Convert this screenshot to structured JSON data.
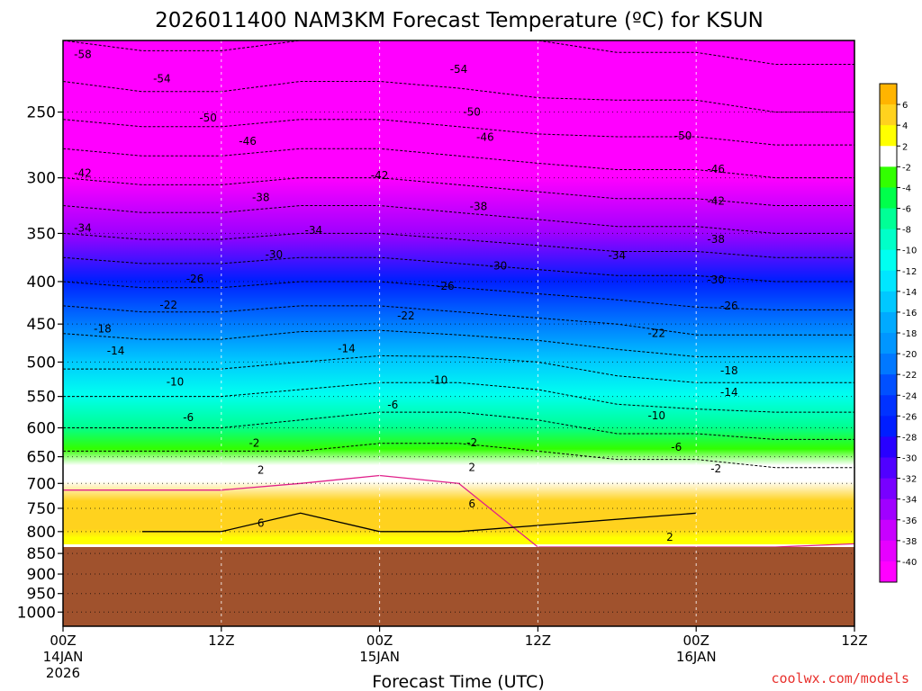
{
  "chart_data": {
    "type": "heatmap",
    "title": "2026011400 NAM3KM Forecast Temperature (ºC) for KSUN",
    "xlabel": "Forecast Time (UTC)",
    "ylabel": "",
    "y_axis": {
      "kind": "log-pressure",
      "units": "hPa",
      "range": [
        1040,
        205
      ],
      "ticks": [
        250,
        300,
        350,
        400,
        450,
        500,
        550,
        600,
        650,
        700,
        750,
        800,
        850,
        900,
        950,
        1000
      ]
    },
    "x_axis": {
      "units": "hours",
      "range": [
        0,
        60
      ],
      "ticks": [
        {
          "hour": 0,
          "label": "00Z",
          "date": "14JAN",
          "year": "2026"
        },
        {
          "hour": 12,
          "label": "12Z",
          "date": "",
          "year": ""
        },
        {
          "hour": 24,
          "label": "00Z",
          "date": "15JAN",
          "year": ""
        },
        {
          "hour": 36,
          "label": "12Z",
          "date": "",
          "year": ""
        },
        {
          "hour": 48,
          "label": "00Z",
          "date": "16JAN",
          "year": ""
        },
        {
          "hour": 60,
          "label": "12Z",
          "date": "",
          "year": ""
        }
      ]
    },
    "terrain_top_hPa": 835,
    "terrain_color": "#a0522d",
    "colorbar": {
      "labels": [
        "6",
        "4",
        "2",
        "-2",
        "-4",
        "-6",
        "-8",
        "-10",
        "-12",
        "-14",
        "-16",
        "-18",
        "-20",
        "-22",
        "-24",
        "-26",
        "-28",
        "-30",
        "-32",
        "-34",
        "-36",
        "-38",
        "-40"
      ],
      "colors": [
        "#ffb400",
        "#ffd21e",
        "#ffff00",
        "#ffffff",
        "#32ff00",
        "#00ff4b",
        "#00ff96",
        "#00ffc8",
        "#00fff0",
        "#00e6ff",
        "#00c8ff",
        "#00aaff",
        "#0096ff",
        "#0078ff",
        "#0050ff",
        "#0032ff",
        "#001eff",
        "#2800ff",
        "#5000ff",
        "#7800ff",
        "#a000ff",
        "#c800ff",
        "#e600ff",
        "#ff00ff"
      ]
    },
    "temperature_profile": {
      "hours": [
        0,
        6,
        12,
        18,
        24,
        30,
        36,
        42,
        48,
        54,
        60
      ],
      "levels_hPa": [
        835,
        820,
        800,
        760,
        740,
        700,
        670,
        640,
        600,
        550,
        500,
        450,
        400,
        350,
        300,
        250,
        205
      ],
      "values_C": [
        [
          3,
          4,
          5,
          5,
          4,
          1,
          0,
          -2,
          -6,
          -10,
          -15,
          -19,
          -26,
          -34,
          -42,
          -51,
          -58
        ],
        [
          3,
          4,
          6,
          6,
          4,
          1,
          0,
          -2,
          -6,
          -10,
          -15,
          -20,
          -27,
          -35,
          -43,
          -52,
          -59
        ],
        [
          3,
          4,
          6,
          5,
          4,
          1,
          0,
          -2,
          -6,
          -10,
          -15,
          -20,
          -27,
          -35,
          -43,
          -52,
          -59
        ],
        [
          3,
          4,
          5,
          6,
          5,
          2,
          0,
          -2,
          -5,
          -9,
          -14,
          -19,
          -26,
          -34,
          -42,
          -51,
          -58
        ],
        [
          3,
          5,
          6,
          7,
          6,
          3,
          1,
          -1,
          -4,
          -8,
          -13,
          -19,
          -26,
          -34,
          -42,
          -51,
          -58
        ],
        [
          3,
          5,
          6,
          6,
          5,
          2,
          1,
          -1,
          -4,
          -8,
          -13,
          -20,
          -27,
          -35,
          -43,
          -52,
          -58
        ],
        [
          2,
          4,
          5,
          5,
          4,
          1,
          0,
          -2,
          -5,
          -9,
          -14,
          -21,
          -28,
          -36,
          -44,
          -53,
          -58
        ],
        [
          2,
          3,
          4,
          4,
          3,
          0,
          -1,
          -3,
          -7,
          -11,
          -16,
          -22,
          -29,
          -37,
          -45,
          -53,
          -59
        ],
        [
          2,
          4,
          5,
          6,
          4,
          1,
          -1,
          -3,
          -7,
          -12,
          -17,
          -24,
          -29,
          -37,
          -45,
          -53,
          -59
        ],
        [
          2,
          3,
          4,
          4,
          3,
          0,
          -2,
          -4,
          -8,
          -12,
          -17,
          -24,
          -30,
          -38,
          -46,
          -54,
          -60
        ],
        [
          1,
          3,
          3,
          3,
          2,
          -1,
          -2,
          -4,
          -8,
          -12,
          -17,
          -24,
          -30,
          -38,
          -46,
          -54,
          -60
        ]
      ]
    },
    "contour_labels": [
      {
        "value": "-58",
        "hour": 1.5,
        "hPa": 213
      },
      {
        "value": "-54",
        "hour": 7.5,
        "hPa": 228
      },
      {
        "value": "-54",
        "hour": 30,
        "hPa": 222
      },
      {
        "value": "-50",
        "hour": 11,
        "hPa": 254
      },
      {
        "value": "-50",
        "hour": 31,
        "hPa": 250
      },
      {
        "value": "-50",
        "hour": 47,
        "hPa": 267
      },
      {
        "value": "-46",
        "hour": 14,
        "hPa": 271
      },
      {
        "value": "-46",
        "hour": 32,
        "hPa": 268
      },
      {
        "value": "-46",
        "hour": 49.5,
        "hPa": 293
      },
      {
        "value": "-42",
        "hour": 1.5,
        "hPa": 296
      },
      {
        "value": "-42",
        "hour": 24,
        "hPa": 298
      },
      {
        "value": "-42",
        "hour": 49.5,
        "hPa": 320
      },
      {
        "value": "-38",
        "hour": 15,
        "hPa": 317
      },
      {
        "value": "-38",
        "hour": 31.5,
        "hPa": 325
      },
      {
        "value": "-38",
        "hour": 49.5,
        "hPa": 356
      },
      {
        "value": "-34",
        "hour": 1.5,
        "hPa": 345
      },
      {
        "value": "-34",
        "hour": 19,
        "hPa": 347
      },
      {
        "value": "-34",
        "hour": 42,
        "hPa": 372
      },
      {
        "value": "-30",
        "hour": 16,
        "hPa": 371
      },
      {
        "value": "-30",
        "hour": 33,
        "hPa": 383
      },
      {
        "value": "-30",
        "hour": 49.5,
        "hPa": 398
      },
      {
        "value": "-26",
        "hour": 10,
        "hPa": 397
      },
      {
        "value": "-26",
        "hour": 29,
        "hPa": 405
      },
      {
        "value": "-26",
        "hour": 50.5,
        "hPa": 428
      },
      {
        "value": "-22",
        "hour": 8,
        "hPa": 427
      },
      {
        "value": "-22",
        "hour": 26,
        "hPa": 440
      },
      {
        "value": "-22",
        "hour": 45,
        "hPa": 462
      },
      {
        "value": "-18",
        "hour": 3,
        "hPa": 456
      },
      {
        "value": "-18",
        "hour": 50.5,
        "hPa": 512
      },
      {
        "value": "-14",
        "hour": 4,
        "hPa": 485
      },
      {
        "value": "-14",
        "hour": 21.5,
        "hPa": 482
      },
      {
        "value": "-14",
        "hour": 50.5,
        "hPa": 544
      },
      {
        "value": "-10",
        "hour": 8.5,
        "hPa": 528
      },
      {
        "value": "-10",
        "hour": 28.5,
        "hPa": 526
      },
      {
        "value": "-10",
        "hour": 45,
        "hPa": 580
      },
      {
        "value": "-6",
        "hour": 9.5,
        "hPa": 583
      },
      {
        "value": "-6",
        "hour": 25,
        "hPa": 563
      },
      {
        "value": "-6",
        "hour": 46.5,
        "hPa": 633
      },
      {
        "value": "-2",
        "hour": 14.5,
        "hPa": 626
      },
      {
        "value": "-2",
        "hour": 31,
        "hPa": 625
      },
      {
        "value": "-2",
        "hour": 49.5,
        "hPa": 672
      },
      {
        "value": "2",
        "hour": 15,
        "hPa": 675
      },
      {
        "value": "2",
        "hour": 31,
        "hPa": 670
      },
      {
        "value": "2",
        "hour": 46,
        "hPa": 812
      },
      {
        "value": "6",
        "hour": 15,
        "hPa": 782
      },
      {
        "value": "6",
        "hour": 31,
        "hPa": 741
      }
    ],
    "credit": "coolwx.com/models"
  }
}
